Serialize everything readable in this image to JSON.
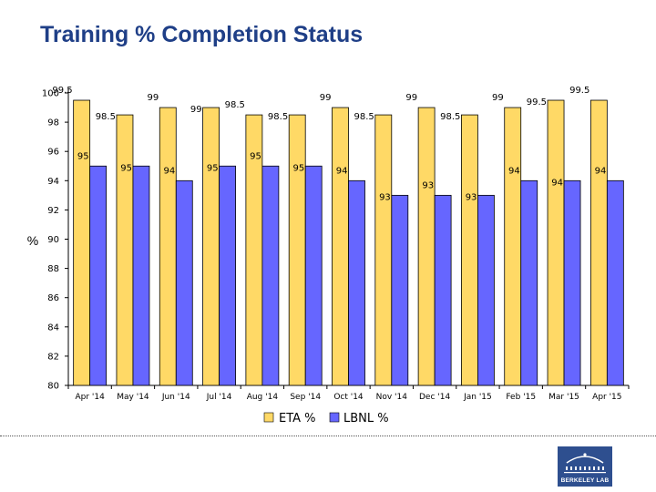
{
  "title": "Training % Completion Status",
  "logo_text": "BERKELEY LAB",
  "colors": {
    "title": "#1f3f87",
    "eta": "#ffd966",
    "lbnl": "#6666ff",
    "logo_bg": "#2e4f8f"
  },
  "chart_data": {
    "type": "bar",
    "categories": [
      "Apr '14",
      "May '14",
      "Jun '14",
      "Jul '14",
      "Aug '14",
      "Sep '14",
      "Oct '14",
      "Nov '14",
      "Dec '14",
      "Jan '15",
      "Feb '15",
      "Mar '15",
      "Apr '15"
    ],
    "series": [
      {
        "name": "ETA %",
        "color": "#ffd966",
        "values": [
          99.5,
          98.5,
          99,
          99,
          98.5,
          98.5,
          99,
          98.5,
          99,
          98.5,
          99,
          99.5,
          99.5
        ]
      },
      {
        "name": "LBNL %",
        "color": "#6666ff",
        "values": [
          95,
          95,
          94,
          95,
          95,
          95,
          94,
          93,
          93,
          93,
          94,
          94,
          94
        ]
      }
    ],
    "ylabel": "%",
    "ylim": [
      80,
      100
    ],
    "yticks": [
      80,
      82,
      84,
      86,
      88,
      90,
      92,
      94,
      96,
      98,
      100
    ],
    "legend": "bottom",
    "grid": false
  }
}
